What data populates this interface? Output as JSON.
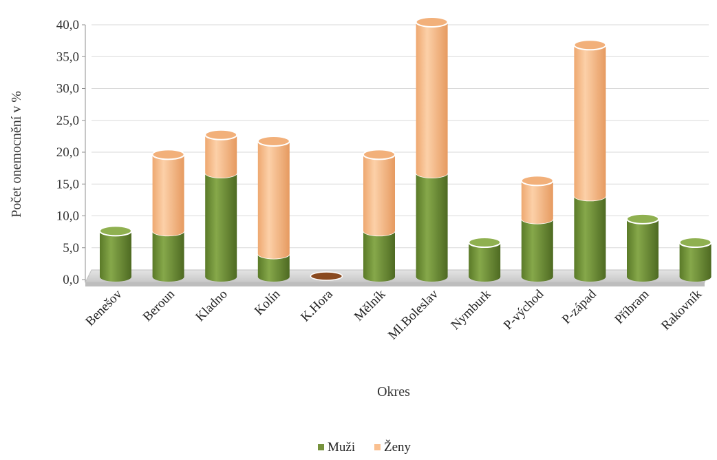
{
  "chart_data": {
    "type": "bar",
    "stacked": true,
    "style": "3d-cylinder",
    "title": "",
    "xlabel": "Okres",
    "ylabel": "Počet onemocnění v %",
    "ylim": [
      0,
      40
    ],
    "ytick_step": 5,
    "ytick_labels": [
      "0,0",
      "5,0",
      "10,0",
      "15,0",
      "20,0",
      "25,0",
      "30,0",
      "35,0",
      "40,0"
    ],
    "grid": true,
    "legend_position": "bottom",
    "categories": [
      "Benešov",
      "Beroun",
      "Kladno",
      "Kolín",
      "K.Hora",
      "Mělník",
      "Ml.Boleslav",
      "Nymburk",
      "P-východ",
      "P-západ",
      "Příbram",
      "Rakovník"
    ],
    "series": [
      {
        "name": "Muži",
        "color": "#76923c",
        "values": [
          7.2,
          7.2,
          16.3,
          3.6,
          0,
          7.2,
          16.3,
          5.4,
          9.1,
          12.7,
          9.1,
          5.4
        ]
      },
      {
        "name": "Ženy",
        "color": "#fac090",
        "values": [
          0,
          12.0,
          6.0,
          17.7,
          0,
          12.0,
          23.7,
          0,
          6.0,
          23.7,
          0,
          0
        ]
      }
    ]
  }
}
